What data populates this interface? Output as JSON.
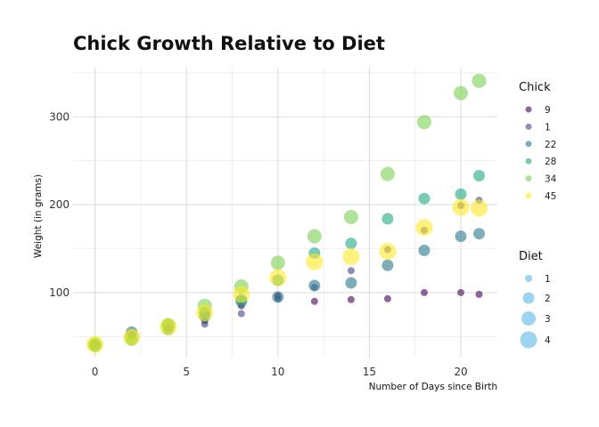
{
  "chart_data": {
    "type": "scatter",
    "title": "Chick Growth Relative to Diet",
    "xlabel": "Number of Days since Birth",
    "ylabel": "Weight (in grams)",
    "xlim": [
      -1.2,
      22.0
    ],
    "ylim": [
      26,
      356
    ],
    "x_ticks": [
      0,
      5,
      10,
      15,
      20
    ],
    "y_ticks": [
      100,
      200,
      300
    ],
    "grid": true,
    "legend_position": "right",
    "color_legend": {
      "title": "Chick",
      "entries": [
        "9",
        "1",
        "22",
        "28",
        "34",
        "45"
      ]
    },
    "size_legend": {
      "title": "Diet",
      "entries": [
        "1",
        "2",
        "3",
        "4"
      ],
      "color": "#5bb8ea"
    },
    "series": [
      {
        "name": "9",
        "diet": 1,
        "color": "#440154",
        "x": [
          0,
          2,
          4,
          6,
          8,
          10,
          12,
          14,
          16,
          18,
          20,
          21
        ],
        "y": [
          42,
          51,
          59,
          68,
          85,
          96,
          90,
          92,
          93,
          100,
          100,
          98
        ]
      },
      {
        "name": "1",
        "diet": 1,
        "color": "#414487",
        "x": [
          0,
          2,
          4,
          6,
          8,
          10,
          12,
          14,
          16,
          18,
          20,
          21
        ],
        "y": [
          42,
          51,
          59,
          64,
          76,
          93,
          106,
          125,
          149,
          171,
          199,
          205
        ]
      },
      {
        "name": "22",
        "diet": 2,
        "color": "#2a788e",
        "x": [
          0,
          2,
          4,
          6,
          8,
          10,
          12,
          14,
          16,
          18,
          20,
          21
        ],
        "y": [
          41,
          55,
          64,
          77,
          90,
          95,
          108,
          111,
          131,
          148,
          164,
          167
        ]
      },
      {
        "name": "28",
        "diet": 2,
        "color": "#22a884",
        "x": [
          0,
          2,
          4,
          6,
          8,
          10,
          12,
          14,
          16,
          18,
          20,
          21
        ],
        "y": [
          39,
          46,
          58,
          73,
          92,
          114,
          145,
          156,
          184,
          207,
          212,
          233
        ]
      },
      {
        "name": "34",
        "diet": 3,
        "color": "#7ad151",
        "x": [
          0,
          2,
          4,
          6,
          8,
          10,
          12,
          14,
          16,
          18,
          20,
          21
        ],
        "y": [
          41,
          49,
          63,
          85,
          107,
          134,
          164,
          186,
          235,
          294,
          327,
          341
        ]
      },
      {
        "name": "45",
        "diet": 4,
        "color": "#fde725",
        "x": [
          0,
          2,
          4,
          6,
          8,
          10,
          12,
          14,
          16,
          18,
          20,
          21
        ],
        "y": [
          41,
          49,
          61,
          77,
          98,
          117,
          135,
          141,
          147,
          174,
          197,
          196
        ]
      }
    ]
  }
}
